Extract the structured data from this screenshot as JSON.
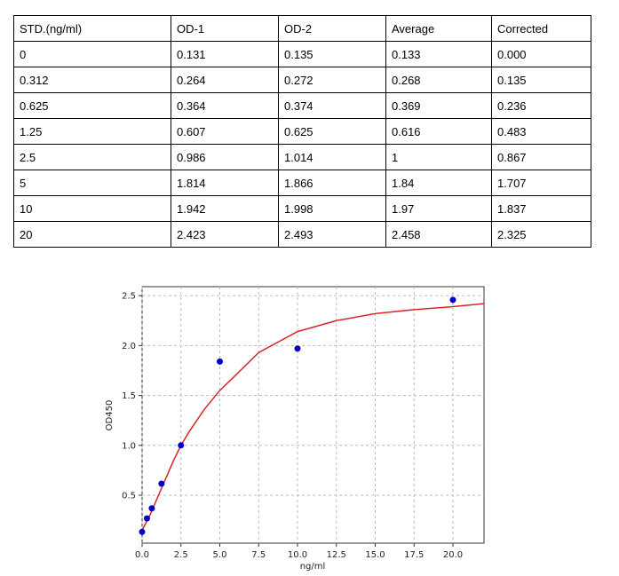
{
  "table": {
    "header": [
      "STD.(ng/ml)",
      "OD-1",
      "OD-2",
      "Average",
      "Corrected"
    ],
    "rows": [
      [
        "0",
        "0.131",
        "0.135",
        "0.133",
        "0.000"
      ],
      [
        "0.312",
        "0.264",
        "0.272",
        "0.268",
        "0.135"
      ],
      [
        "0.625",
        "0.364",
        "0.374",
        "0.369",
        "0.236"
      ],
      [
        "1.25",
        "0.607",
        "0.625",
        "0.616",
        "0.483"
      ],
      [
        "2.5",
        "0.986",
        "1.014",
        "1",
        "0.867"
      ],
      [
        "5",
        "1.814",
        "1.866",
        "1.84",
        "1.707"
      ],
      [
        "10",
        "1.942",
        "1.998",
        "1.97",
        "1.837"
      ],
      [
        "20",
        "2.423",
        "2.493",
        "2.458",
        "2.325"
      ]
    ]
  },
  "chart_data": {
    "type": "scatter",
    "x_label": "ng/ml",
    "y_label": "OD450",
    "xlim": [
      0,
      22
    ],
    "ylim": [
      0.02,
      2.59
    ],
    "grid": true,
    "xticks": [
      {
        "value": 0,
        "label": "0.0"
      },
      {
        "value": 2.5,
        "label": "2.5"
      },
      {
        "value": 5,
        "label": "5.0"
      },
      {
        "value": 7.5,
        "label": "7.5"
      },
      {
        "value": 10,
        "label": "10.0"
      },
      {
        "value": 12.5,
        "label": "12.5"
      },
      {
        "value": 15,
        "label": "15.0"
      },
      {
        "value": 17.5,
        "label": "17.5"
      },
      {
        "value": 20,
        "label": "20.0"
      }
    ],
    "yticks": [
      0.5,
      {
        "value": 1,
        "label": "1.0"
      },
      1.5,
      {
        "value": 2,
        "label": "2.0"
      },
      2.5
    ],
    "series": [
      {
        "type": "scatter",
        "color": "#0000cc",
        "x": [
          0,
          0.312,
          0.625,
          1.25,
          2.5,
          5,
          10,
          20
        ],
        "values": [
          0.133,
          0.268,
          0.369,
          0.616,
          1,
          1.84,
          1.97,
          2.458
        ]
      },
      {
        "type": "line",
        "color": "#d62728",
        "x": [
          0,
          0.5,
          1,
          1.5,
          2,
          2.5,
          3,
          4,
          5,
          6,
          7.5,
          10,
          12.5,
          15,
          17.5,
          20,
          22
        ],
        "values": [
          0.15,
          0.3,
          0.48,
          0.66,
          0.84,
          1.0,
          1.13,
          1.36,
          1.55,
          1.7,
          1.93,
          2.14,
          2.25,
          2.32,
          2.36,
          2.39,
          2.42
        ]
      }
    ]
  }
}
